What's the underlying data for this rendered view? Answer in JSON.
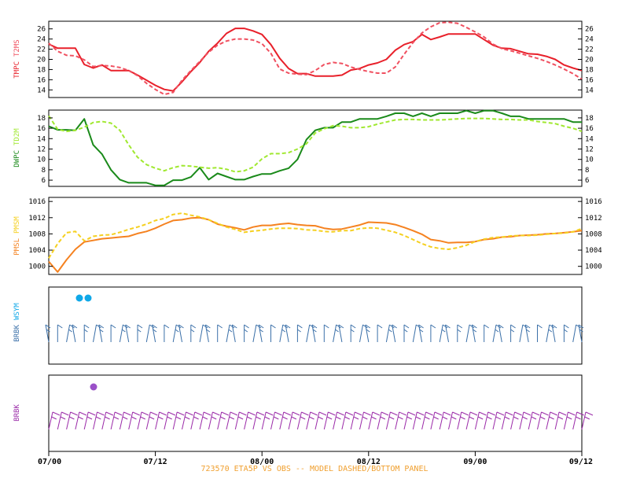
{
  "footer": "723570  ETA5P VS OBS -- MODEL DASHED/BOTTOM PANEL",
  "x_ticks": [
    "07/00",
    "07/12",
    "08/00",
    "08/12",
    "09/00",
    "09/12"
  ],
  "colors": {
    "temp": "#e8202a",
    "temp_model": "#f05060",
    "dew": "#1a8a1a",
    "dew_model": "#a0e830",
    "pres": "#f58220",
    "pres_model": "#f5d020",
    "barb_obs": "#3a6fa8",
    "barb_model": "#9a2aa8",
    "wsym_dot": "#10a8e8",
    "bottom_dot": "#9a50c8"
  },
  "chart_data": [
    {
      "type": "line",
      "ylabel_obs": "TMPC",
      "ylabel_model": "T2MS",
      "yticks": [
        14,
        16,
        18,
        20,
        22,
        24,
        26
      ],
      "ylim": [
        12.5,
        27.5
      ],
      "x": [
        0,
        1,
        2,
        3,
        4,
        5,
        6,
        7,
        8,
        9,
        10,
        11,
        12,
        13,
        14,
        15,
        16,
        17,
        18,
        19,
        20,
        21,
        22,
        23,
        24,
        25,
        26,
        27,
        28,
        29,
        30,
        31,
        32,
        33,
        34,
        35,
        36,
        37,
        38,
        39,
        40,
        41,
        42,
        43,
        44,
        45,
        46,
        47,
        48,
        49,
        50,
        51,
        52,
        53,
        54,
        55,
        56,
        57,
        58,
        59,
        60
      ],
      "series": [
        {
          "name": "TMPC",
          "style": "solid",
          "values": [
            23,
            22.2,
            22.2,
            22.2,
            19,
            18.3,
            18.9,
            17.8,
            17.8,
            17.8,
            16.9,
            15.9,
            14.9,
            14.1,
            13.8,
            15.6,
            17.6,
            19.4,
            21.6,
            23.2,
            25.1,
            26.1,
            26.1,
            25.6,
            24.9,
            22.9,
            20.2,
            18.2,
            17.2,
            17.2,
            16.7,
            16.7,
            16.7,
            16.9,
            17.9,
            18.2,
            18.9,
            19.3,
            20,
            21.8,
            22.9,
            23.5,
            24.9,
            23.9,
            24.4,
            25,
            25,
            25,
            25,
            23.9,
            22.8,
            22.2,
            22.1,
            21.6,
            21.1,
            21,
            20.6,
            20,
            18.9,
            18.3,
            17.8
          ]
        },
        {
          "name": "T2MS",
          "style": "dashed",
          "values": [
            23.2,
            21.6,
            20.8,
            20.7,
            19.9,
            18.6,
            18.8,
            18.7,
            18.4,
            17.8,
            16.8,
            15.3,
            14.1,
            13.1,
            13.5,
            15.9,
            17.8,
            19.6,
            21.4,
            22.8,
            23.6,
            24,
            24,
            23.8,
            23.1,
            21.2,
            18.1,
            17.3,
            17.1,
            17,
            17.8,
            19,
            19.4,
            19.2,
            18.5,
            18,
            17.6,
            17.3,
            17.3,
            18.5,
            21,
            23.3,
            25.2,
            26.4,
            27.2,
            27.3,
            27.1,
            26.3,
            25.4,
            24.4,
            23,
            22.1,
            21.7,
            21.2,
            20.7,
            20.2,
            19.6,
            18.9,
            18.1,
            17.2,
            16.1
          ]
        }
      ]
    },
    {
      "type": "line",
      "ylabel_obs": "DWPC",
      "ylabel_model": "TD2M",
      "yticks": [
        6,
        8,
        10,
        12,
        14,
        16,
        18
      ],
      "ylim": [
        4.8,
        19.5
      ],
      "x": [
        0,
        1,
        2,
        3,
        4,
        5,
        6,
        7,
        8,
        9,
        10,
        11,
        12,
        13,
        14,
        15,
        16,
        17,
        18,
        19,
        20,
        21,
        22,
        23,
        24,
        25,
        26,
        27,
        28,
        29,
        30,
        31,
        32,
        33,
        34,
        35,
        36,
        37,
        38,
        39,
        40,
        41,
        42,
        43,
        44,
        45,
        46,
        47,
        48,
        49,
        50,
        51,
        52,
        53,
        54,
        55,
        56,
        57,
        58,
        59,
        60
      ],
      "series": [
        {
          "name": "DWPC",
          "style": "solid",
          "values": [
            16.4,
            15.7,
            15.7,
            15.6,
            17.8,
            12.8,
            11,
            8,
            6.1,
            5.5,
            5.5,
            5.5,
            5,
            5,
            6,
            6,
            6.6,
            8.4,
            6.1,
            7.3,
            6.7,
            6.1,
            6.1,
            6.7,
            7.2,
            7.2,
            7.8,
            8.3,
            10,
            13.8,
            15.6,
            16.1,
            16.1,
            17.2,
            17.2,
            17.8,
            17.8,
            17.8,
            18.3,
            18.9,
            18.9,
            18.3,
            18.9,
            18.3,
            18.9,
            18.9,
            18.9,
            19.4,
            18.9,
            19.4,
            19.4,
            18.9,
            18.3,
            18.3,
            17.8,
            17.8,
            17.8,
            17.8,
            17.8,
            17.2,
            17.2
          ]
        },
        {
          "name": "TD2M",
          "style": "dashed",
          "values": [
            18.4,
            15.8,
            15.4,
            15.6,
            16.2,
            17.1,
            17.3,
            17,
            15.6,
            12.8,
            10.4,
            9,
            8.3,
            7.8,
            8.4,
            8.8,
            8.7,
            8.5,
            8.3,
            8.4,
            8.1,
            7.6,
            7.8,
            8.5,
            10.1,
            11.1,
            11.1,
            11.3,
            12,
            13,
            15.1,
            15.9,
            16.5,
            16.4,
            16.1,
            16.1,
            16.3,
            16.8,
            17.2,
            17.6,
            17.7,
            17.7,
            17.6,
            17.6,
            17.6,
            17.7,
            17.8,
            17.9,
            17.9,
            17.9,
            17.8,
            17.7,
            17.7,
            17.6,
            17.6,
            17.3,
            17.1,
            16.9,
            16.4,
            16,
            15.4
          ]
        }
      ]
    },
    {
      "type": "line",
      "ylabel_obs": "PMSL",
      "ylabel_model": "PMSM",
      "yticks": [
        1000,
        1004,
        1008,
        1012,
        1016
      ],
      "ylim": [
        998,
        1017
      ],
      "x": [
        0,
        1,
        2,
        3,
        4,
        5,
        6,
        7,
        8,
        9,
        10,
        11,
        12,
        13,
        14,
        15,
        16,
        17,
        18,
        19,
        20,
        21,
        22,
        23,
        24,
        25,
        26,
        27,
        28,
        29,
        30,
        31,
        32,
        33,
        34,
        35,
        36,
        37,
        38,
        39,
        40,
        41,
        42,
        43,
        44,
        45,
        46,
        47,
        48,
        49,
        50,
        51,
        52,
        53,
        54,
        55,
        56,
        57,
        58,
        59,
        60
      ],
      "series": [
        {
          "name": "PMSL",
          "style": "solid",
          "values": [
            1001.2,
            998.6,
            1001.6,
            1004.2,
            1006,
            1006.4,
            1006.8,
            1007,
            1007.2,
            1007.4,
            1008.1,
            1008.6,
            1009.4,
            1010.4,
            1011.3,
            1011.5,
            1011.9,
            1012,
            1011.5,
            1010.4,
            1009.9,
            1009.5,
            1009,
            1009.7,
            1010.1,
            1010.1,
            1010.4,
            1010.6,
            1010.3,
            1010.1,
            1010,
            1009.4,
            1009.1,
            1009.2,
            1009.7,
            1010.2,
            1010.9,
            1010.8,
            1010.7,
            1010.3,
            1009.6,
            1008.8,
            1007.9,
            1006.6,
            1006.3,
            1005.8,
            1005.9,
            1005.9,
            1006.1,
            1006.6,
            1006.8,
            1007.2,
            1007.3,
            1007.6,
            1007.7,
            1007.8,
            1008,
            1008.1,
            1008.3,
            1008.5,
            1008.8
          ]
        },
        {
          "name": "PMSM",
          "style": "dashed",
          "values": [
            1002,
            1005.6,
            1008.3,
            1008.6,
            1006.3,
            1007.4,
            1007.7,
            1007.8,
            1008.4,
            1009.1,
            1009.7,
            1010.4,
            1011.3,
            1011.8,
            1012.8,
            1013.1,
            1012.6,
            1012.2,
            1011.5,
            1010.6,
            1009.7,
            1009.1,
            1008.4,
            1008.7,
            1008.9,
            1009.2,
            1009.4,
            1009.4,
            1009.3,
            1009,
            1008.9,
            1008.6,
            1008.5,
            1008.8,
            1008.8,
            1009.3,
            1009.5,
            1009.4,
            1008.9,
            1008.4,
            1007.6,
            1006.6,
            1005.6,
            1004.8,
            1004.4,
            1004.2,
            1004.6,
            1005.2,
            1006.1,
            1006.7,
            1007.1,
            1007.2,
            1007.5,
            1007.6,
            1007.6,
            1007.7,
            1007.9,
            1008.1,
            1008.2,
            1008.5,
            1009.3
          ]
        }
      ]
    }
  ],
  "barb_panels": [
    {
      "label_obs": "BRBK",
      "label_model": "WSYM"
    },
    {
      "label_obs": "BRBK"
    }
  ]
}
